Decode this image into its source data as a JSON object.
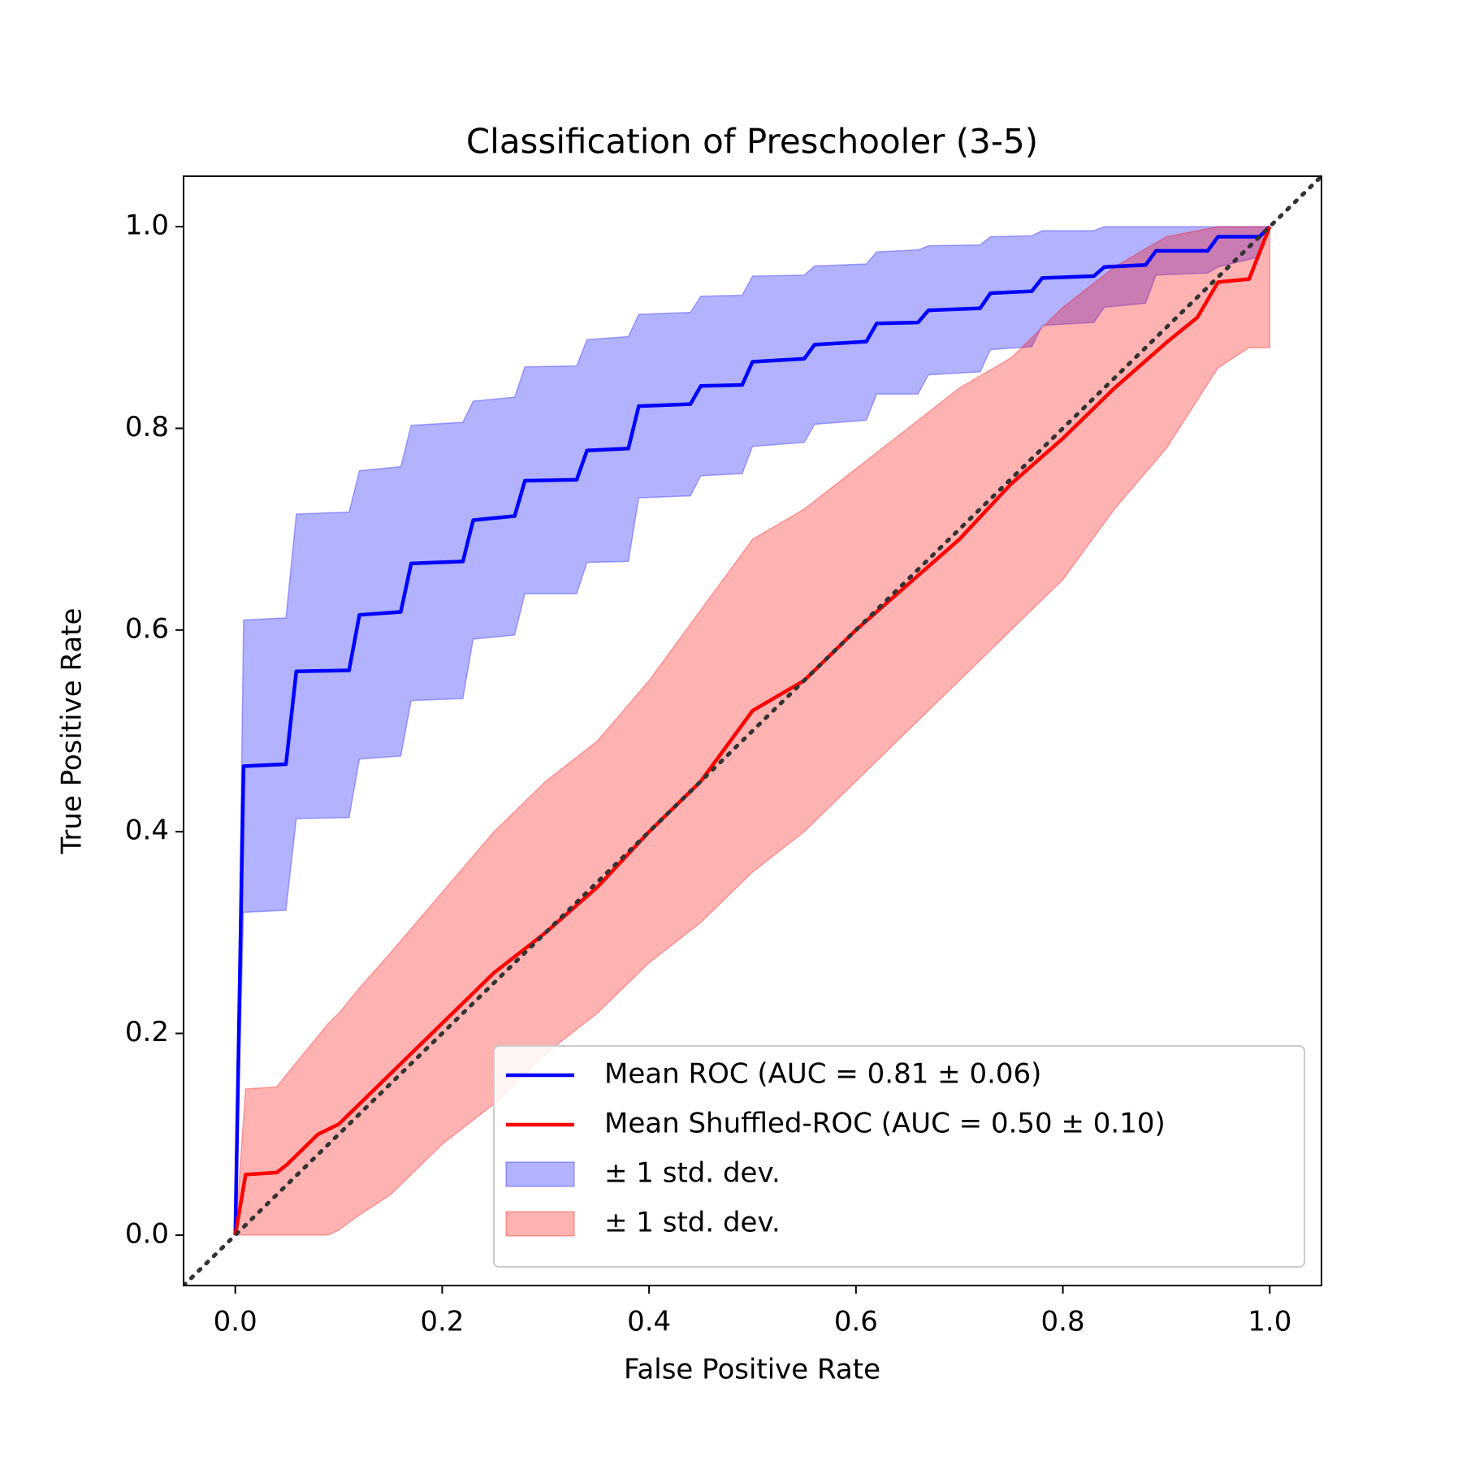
{
  "chart_data": {
    "type": "line",
    "title": "Classification of Preschooler (3-5)",
    "xlabel": "False Positive Rate",
    "ylabel": "True Positive Rate",
    "xlim": [
      -0.05,
      1.05
    ],
    "ylim": [
      -0.05,
      1.05
    ],
    "xticks": [
      {
        "value": 0,
        "label": "0.0"
      },
      0.2,
      0.4,
      0.6,
      0.8,
      {
        "value": 1,
        "label": "1.0"
      }
    ],
    "yticks": [
      {
        "value": 0,
        "label": "0.0"
      },
      0.2,
      0.4,
      0.6,
      0.8,
      {
        "value": 1,
        "label": "1.0"
      }
    ],
    "legend": "lower right",
    "reference_line": {
      "color": "#333333",
      "x": [
        -0.05,
        1.05
      ],
      "values": [
        -0.05,
        1.05
      ]
    },
    "series": [
      {
        "name": "Mean ROC (AUC = 0.81 ± 0.06)",
        "color": "#0000ff",
        "x": [
          0,
          0.008,
          0.049,
          0.059,
          0.11,
          0.12,
          0.16,
          0.17,
          0.22,
          0.23,
          0.27,
          0.28,
          0.33,
          0.34,
          0.38,
          0.39,
          0.44,
          0.45,
          0.49,
          0.5,
          0.55,
          0.56,
          0.61,
          0.62,
          0.66,
          0.67,
          0.72,
          0.73,
          0.77,
          0.78,
          0.83,
          0.84,
          0.88,
          0.89,
          0.94,
          0.95,
          0.99,
          1
        ],
        "values": [
          0,
          0.465,
          0.467,
          0.559,
          0.56,
          0.615,
          0.618,
          0.666,
          0.668,
          0.709,
          0.713,
          0.748,
          0.749,
          0.778,
          0.78,
          0.822,
          0.824,
          0.842,
          0.843,
          0.866,
          0.869,
          0.883,
          0.886,
          0.904,
          0.905,
          0.917,
          0.919,
          0.934,
          0.936,
          0.949,
          0.951,
          0.96,
          0.962,
          0.976,
          0.976,
          0.99,
          0.99,
          1
        ]
      },
      {
        "name": "Mean Shuffled-ROC (AUC = 0.50 ± 0.10)",
        "color": "#ff0000",
        "x": [
          0,
          0.01,
          0.04,
          0.05,
          0.08,
          0.1,
          0.15,
          0.2,
          0.25,
          0.3,
          0.35,
          0.4,
          0.45,
          0.5,
          0.55,
          0.6,
          0.65,
          0.7,
          0.75,
          0.8,
          0.85,
          0.9,
          0.93,
          0.95,
          0.98,
          1
        ],
        "values": [
          0,
          0.06,
          0.062,
          0.07,
          0.1,
          0.11,
          0.16,
          0.21,
          0.26,
          0.3,
          0.345,
          0.4,
          0.45,
          0.52,
          0.55,
          0.6,
          0.645,
          0.69,
          0.745,
          0.79,
          0.84,
          0.885,
          0.91,
          0.945,
          0.948,
          1
        ]
      },
      {
        "name": "± 1 std. dev.",
        "color": "#0000ff",
        "opacity": 0.3,
        "x": [
          0,
          0.008,
          0.049,
          0.059,
          0.11,
          0.12,
          0.16,
          0.17,
          0.22,
          0.23,
          0.27,
          0.28,
          0.33,
          0.34,
          0.38,
          0.39,
          0.44,
          0.45,
          0.49,
          0.5,
          0.55,
          0.56,
          0.61,
          0.62,
          0.66,
          0.67,
          0.72,
          0.73,
          0.77,
          0.78,
          0.83,
          0.84,
          0.88,
          0.89,
          0.94,
          0.95,
          0.99,
          1
        ],
        "upper": [
          0,
          0.61,
          0.612,
          0.715,
          0.717,
          0.758,
          0.762,
          0.803,
          0.806,
          0.827,
          0.831,
          0.861,
          0.862,
          0.888,
          0.891,
          0.913,
          0.915,
          0.931,
          0.932,
          0.951,
          0.952,
          0.961,
          0.963,
          0.975,
          0.977,
          0.981,
          0.982,
          0.99,
          0.991,
          0.996,
          0.996,
          1,
          1,
          1,
          1,
          1,
          1,
          1
        ],
        "lower": [
          0,
          0.32,
          0.322,
          0.413,
          0.414,
          0.472,
          0.475,
          0.53,
          0.532,
          0.591,
          0.595,
          0.636,
          0.636,
          0.667,
          0.668,
          0.731,
          0.733,
          0.753,
          0.755,
          0.782,
          0.786,
          0.804,
          0.808,
          0.834,
          0.834,
          0.853,
          0.856,
          0.878,
          0.881,
          0.902,
          0.905,
          0.92,
          0.924,
          0.952,
          0.954,
          0.96,
          0.97,
          1
        ]
      },
      {
        "name": "± 1 std. dev.",
        "color": "#ff0000",
        "opacity": 0.3,
        "x": [
          0,
          0.01,
          0.04,
          0.05,
          0.09,
          0.1,
          0.12,
          0.15,
          0.2,
          0.25,
          0.3,
          0.35,
          0.4,
          0.45,
          0.5,
          0.55,
          0.6,
          0.65,
          0.7,
          0.75,
          0.8,
          0.85,
          0.9,
          0.95,
          0.98,
          1
        ],
        "upper": [
          0,
          0.145,
          0.147,
          0.16,
          0.21,
          0.22,
          0.245,
          0.28,
          0.34,
          0.4,
          0.45,
          0.49,
          0.55,
          0.62,
          0.69,
          0.72,
          0.76,
          0.8,
          0.84,
          0.87,
          0.92,
          0.96,
          0.99,
          1,
          1,
          1
        ],
        "lower": [
          0,
          0,
          0,
          0,
          0,
          0.005,
          0.02,
          0.04,
          0.09,
          0.13,
          0.18,
          0.22,
          0.27,
          0.31,
          0.36,
          0.4,
          0.45,
          0.5,
          0.55,
          0.6,
          0.65,
          0.72,
          0.78,
          0.86,
          0.88,
          0.88
        ]
      }
    ]
  }
}
